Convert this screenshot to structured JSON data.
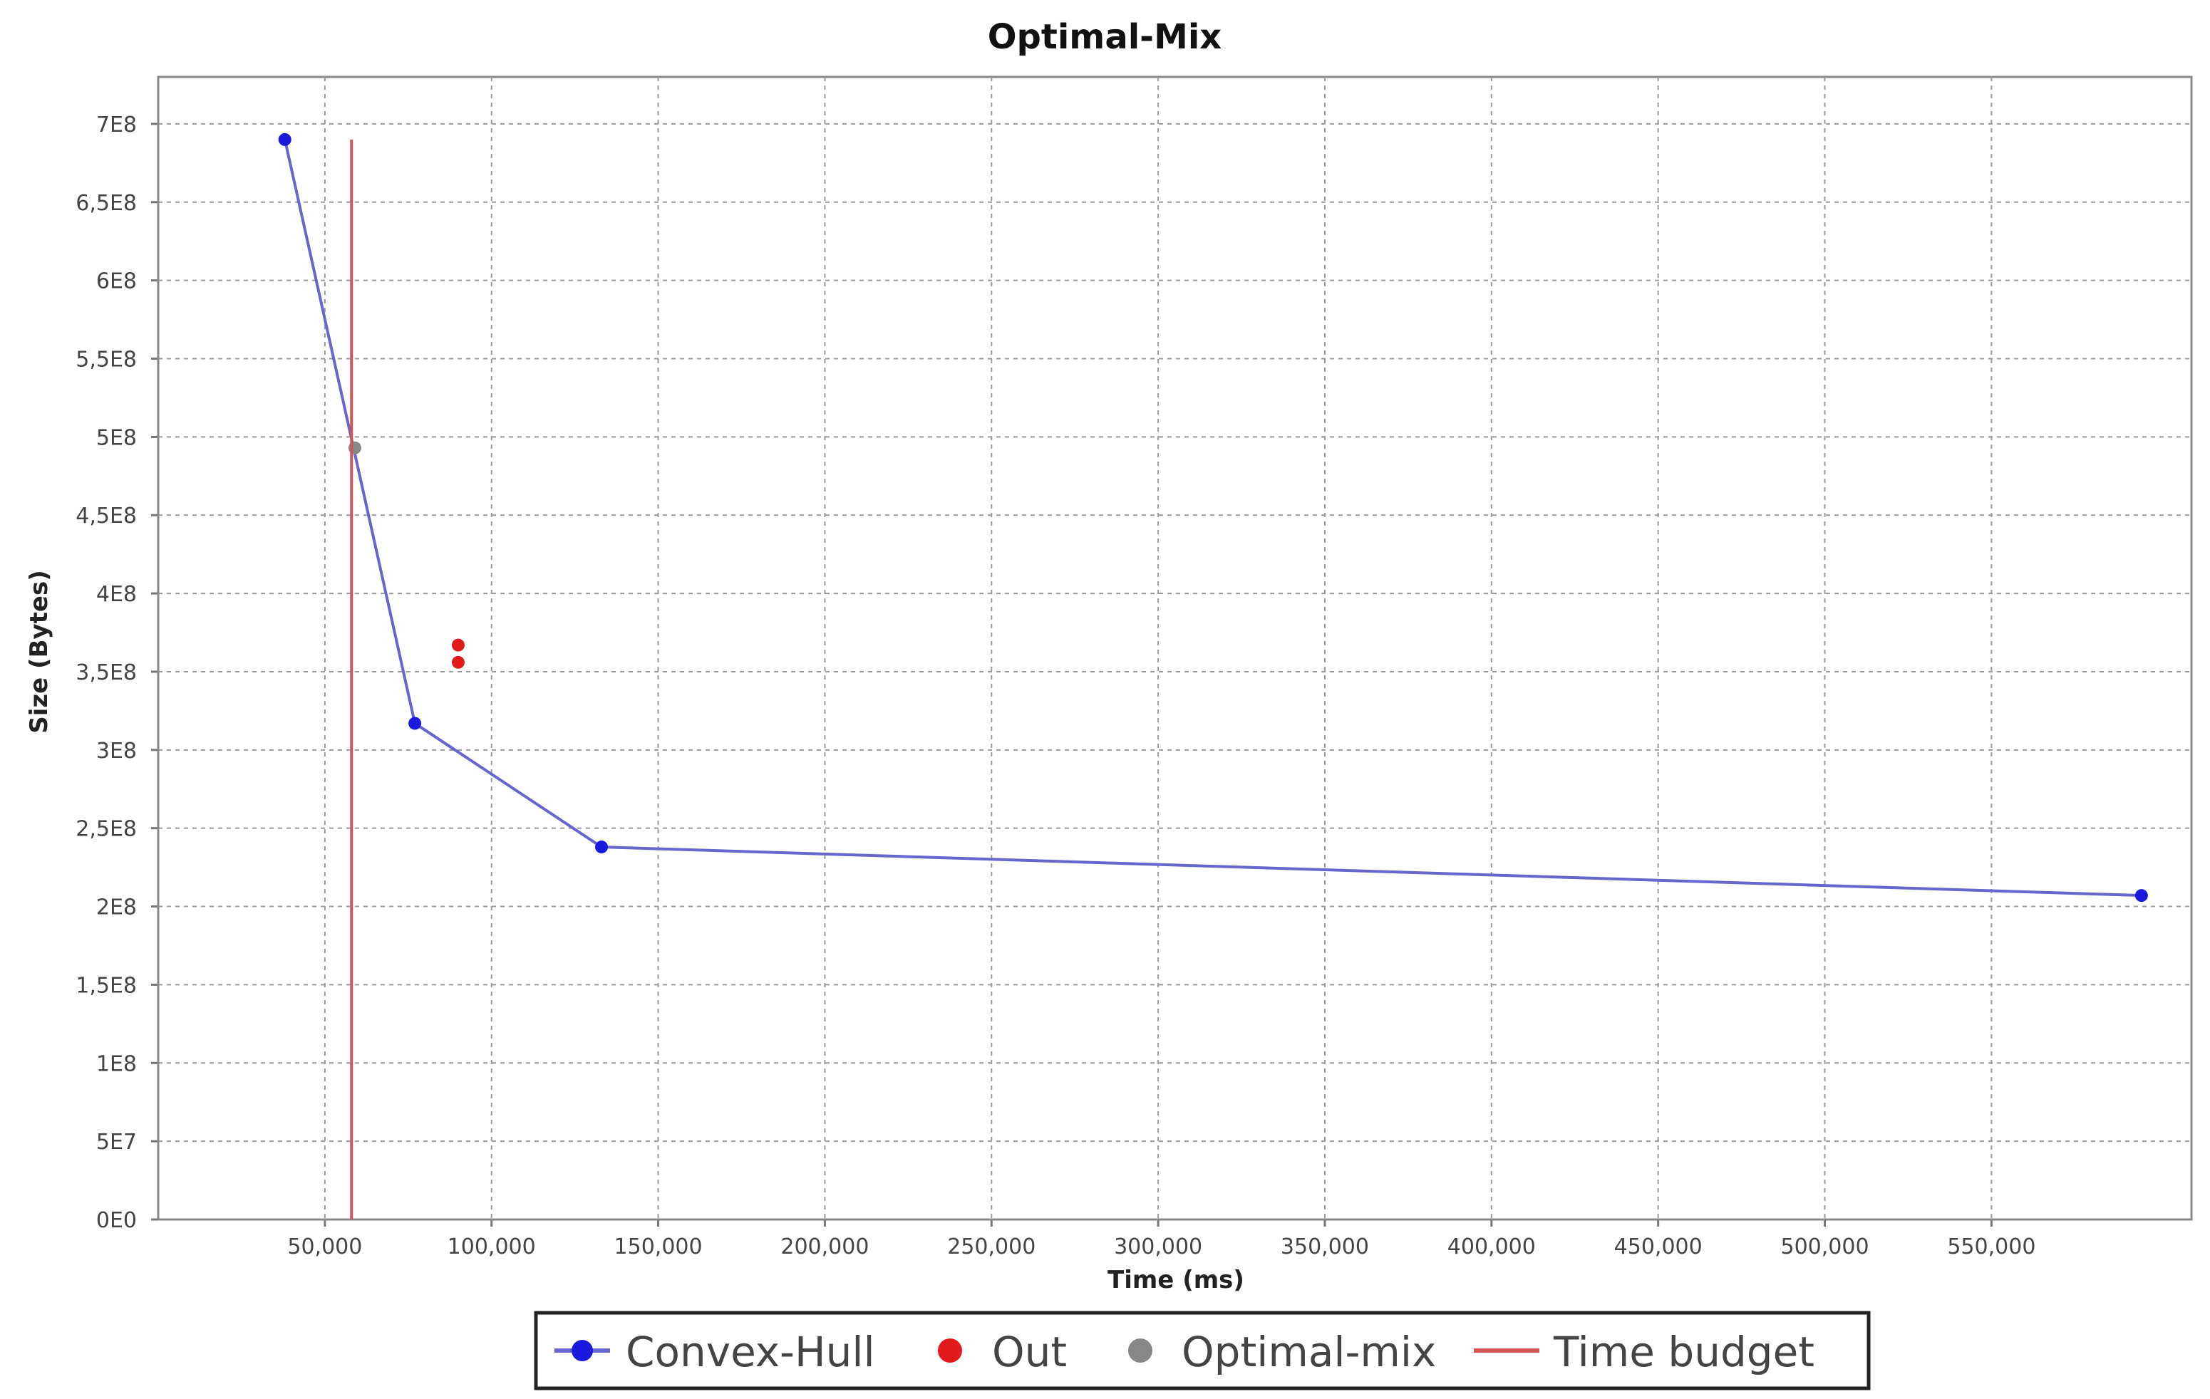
{
  "chart_data": {
    "type": "scatter",
    "title": "Optimal-Mix",
    "xlabel": "Time (ms)",
    "ylabel": "Size (Bytes)",
    "xlim": [
      0,
      610000
    ],
    "ylim": [
      0,
      730000000
    ],
    "grid": true,
    "legend_position": "bottom",
    "x_ticks": [
      50000,
      100000,
      150000,
      200000,
      250000,
      300000,
      350000,
      400000,
      450000,
      500000,
      550000
    ],
    "x_tick_labels": [
      "50,000",
      "100,000",
      "150,000",
      "200,000",
      "250,000",
      "300,000",
      "350,000",
      "400,000",
      "450,000",
      "500,000",
      "550,000"
    ],
    "y_ticks": [
      0,
      50000000,
      100000000,
      150000000,
      200000000,
      250000000,
      300000000,
      350000000,
      400000000,
      450000000,
      500000000,
      550000000,
      600000000,
      650000000,
      700000000
    ],
    "y_tick_labels": [
      "0E0",
      "5E7",
      "1E8",
      "1,5E8",
      "2E8",
      "2,5E8",
      "3E8",
      "3,5E8",
      "4E8",
      "4,5E8",
      "5E8",
      "5,5E8",
      "6E8",
      "6,5E8",
      "7E8"
    ],
    "series": [
      {
        "name": "Convex-Hull",
        "kind": "line-markers",
        "color": "#1a1adf",
        "line_color": "#6666cc",
        "points": [
          [
            38000,
            690000000
          ],
          [
            77000,
            317000000
          ],
          [
            133000,
            238000000
          ],
          [
            595000,
            207000000
          ]
        ]
      },
      {
        "name": "Out",
        "kind": "markers",
        "color": "#e31a1c",
        "points": [
          [
            90000,
            367000000
          ],
          [
            90000,
            356000000
          ]
        ]
      },
      {
        "name": "Optimal-mix",
        "kind": "markers",
        "color": "#888888",
        "points": [
          [
            59000,
            493000000
          ]
        ]
      },
      {
        "name": "Time budget",
        "kind": "vertical-line",
        "color": "#d45555",
        "x": 58000,
        "y_range": [
          0,
          690000000
        ]
      }
    ]
  }
}
